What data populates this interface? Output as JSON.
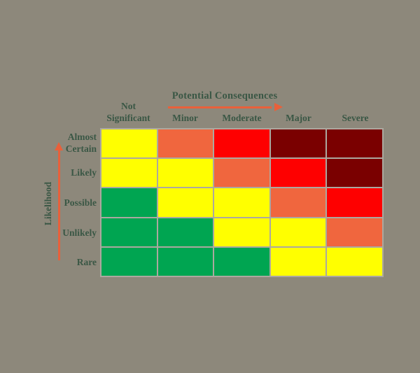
{
  "background_color": "#8D887B",
  "text_color": "#3A5745",
  "arrow_color": "#E9603A",
  "grid_border_color": "#ACA89F",
  "x_axis": {
    "title": "Potential Consequences",
    "arrow_icon": "right-arrow"
  },
  "y_axis": {
    "title": "Likelihood",
    "arrow_icon": "up-arrow"
  },
  "chart_data": {
    "type": "heatmap",
    "title": "Potential Consequences",
    "xlabel": "Potential Consequences",
    "ylabel": "Likelihood",
    "categories_x": [
      "Not Significant",
      "Minor",
      "Moderate",
      "Major",
      "Severe"
    ],
    "categories_y": [
      "Almost Certain",
      "Likely",
      "Possible",
      "Unlikely",
      "Rare"
    ],
    "cells": [
      [
        "medium",
        "high",
        "very_high",
        "extreme",
        "extreme"
      ],
      [
        "medium",
        "medium",
        "high",
        "very_high",
        "extreme"
      ],
      [
        "low",
        "medium",
        "medium",
        "high",
        "very_high"
      ],
      [
        "low",
        "low",
        "medium",
        "medium",
        "high"
      ],
      [
        "low",
        "low",
        "low",
        "medium",
        "medium"
      ]
    ],
    "legend": "none",
    "grid": "on",
    "palette": {
      "low": "#00A551",
      "medium": "#FFFF00",
      "high": "#F0663E",
      "very_high": "#FE0000",
      "extreme": "#7A0000"
    }
  }
}
